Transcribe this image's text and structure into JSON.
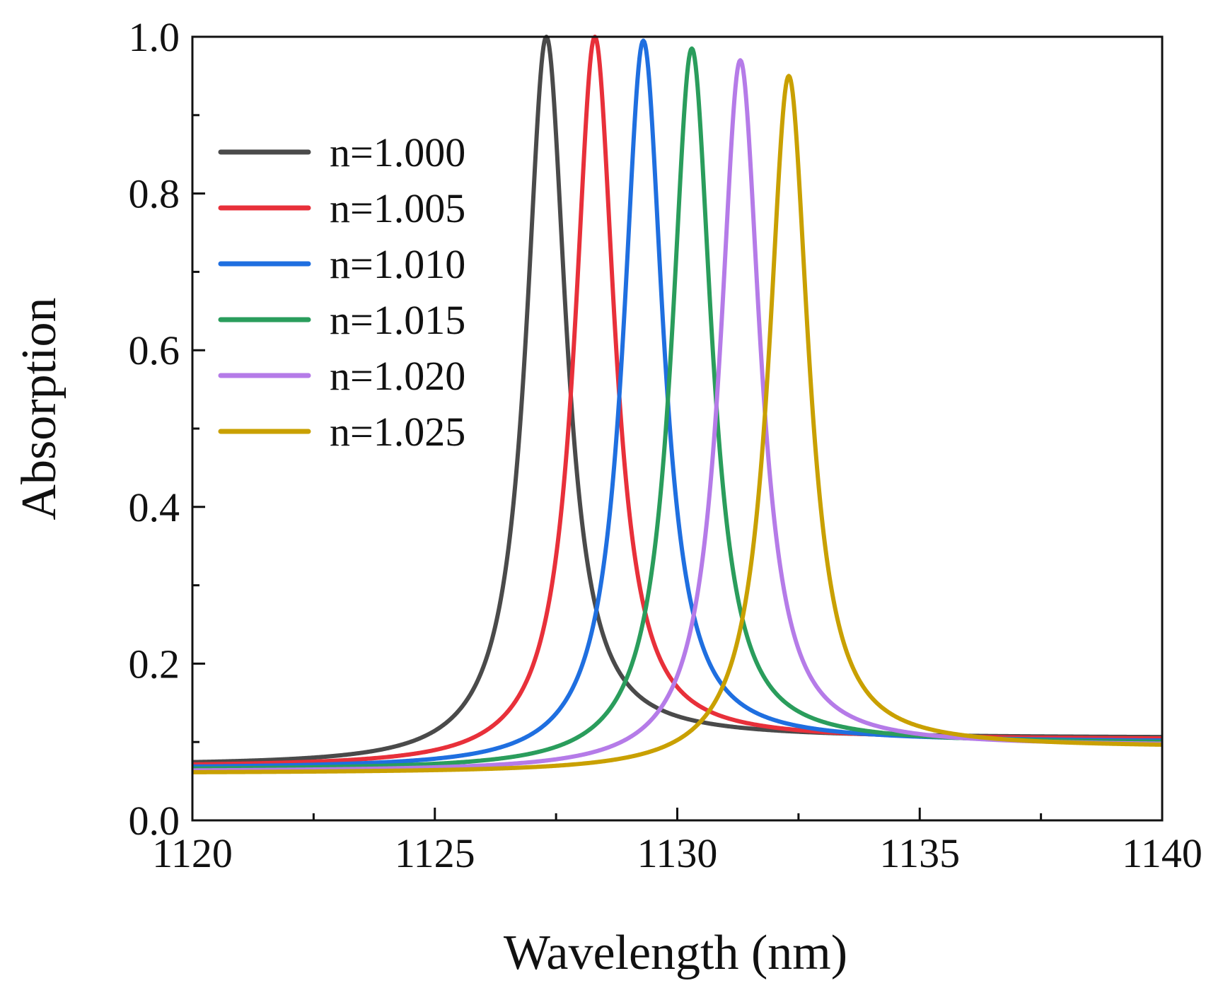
{
  "chart_data": {
    "type": "line",
    "title": "",
    "xlabel": "Wavelength (nm)",
    "ylabel": "Absorption",
    "xlim": [
      1120,
      1140
    ],
    "ylim": [
      0.0,
      1.0
    ],
    "xticks": [
      1120,
      1125,
      1130,
      1135,
      1140
    ],
    "xtick_labels": [
      "1120",
      "1125",
      "1130",
      "1135",
      "1140"
    ],
    "yticks": [
      0.0,
      0.2,
      0.4,
      0.6,
      0.8,
      1.0
    ],
    "ytick_labels": [
      "0.0",
      "0.2",
      "0.4",
      "0.6",
      "0.8",
      "1.0"
    ],
    "grid": false,
    "legend_position": "top-left",
    "series": [
      {
        "name": "n=1.000",
        "color": "#4a4a4a",
        "peak_x": 1127.3,
        "peak_y": 1.0,
        "base_left": 0.07,
        "base_right": 0.105,
        "width": 0.5
      },
      {
        "name": "n=1.005",
        "color": "#e8303a",
        "peak_x": 1128.3,
        "peak_y": 1.0,
        "base_left": 0.068,
        "base_right": 0.103,
        "width": 0.5
      },
      {
        "name": "n=1.010",
        "color": "#1f6fe0",
        "peak_x": 1129.3,
        "peak_y": 0.995,
        "base_left": 0.066,
        "base_right": 0.1,
        "width": 0.5
      },
      {
        "name": "n=1.015",
        "color": "#2a9d5c",
        "peak_x": 1130.3,
        "peak_y": 0.985,
        "base_left": 0.064,
        "base_right": 0.098,
        "width": 0.5
      },
      {
        "name": "n=1.020",
        "color": "#b57be8",
        "peak_x": 1131.3,
        "peak_y": 0.97,
        "base_left": 0.062,
        "base_right": 0.095,
        "width": 0.5
      },
      {
        "name": "n=1.025",
        "color": "#c9a000",
        "peak_x": 1132.3,
        "peak_y": 0.95,
        "base_left": 0.06,
        "base_right": 0.093,
        "width": 0.5
      }
    ]
  }
}
